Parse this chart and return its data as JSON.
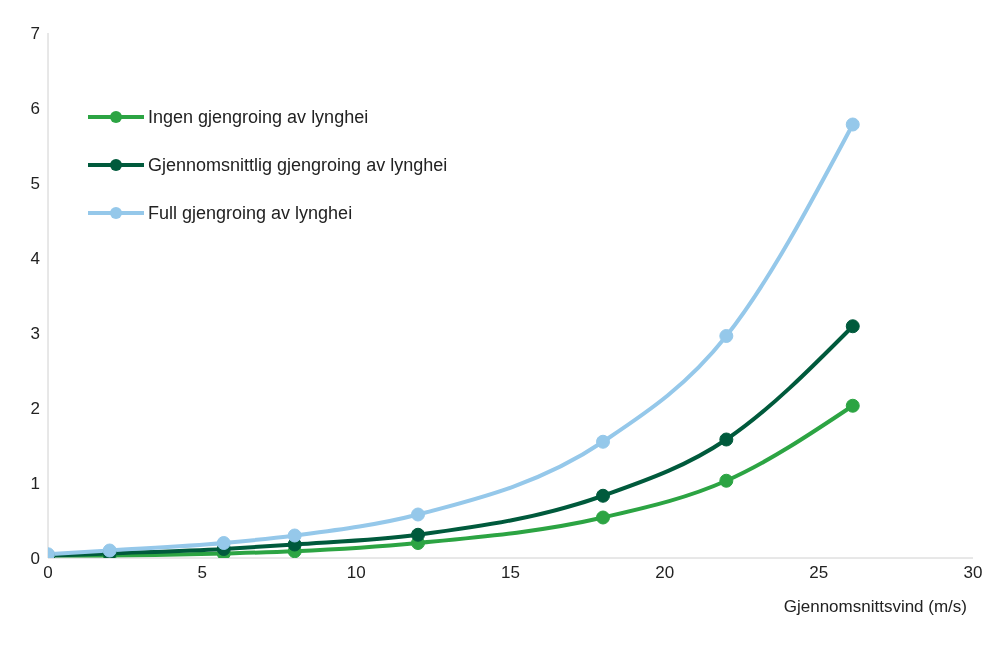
{
  "chart_data": {
    "type": "line",
    "xlabel": "Gjennomsnittsvind (m/s)",
    "x": [
      0,
      2,
      5.7,
      8,
      12,
      18,
      22,
      26.1
    ],
    "series": [
      {
        "name": "Ingen gjengroing av lynghei",
        "color": "#2ca443",
        "values": [
          0.01,
          0.03,
          0.06,
          0.09,
          0.2,
          0.54,
          1.03,
          2.03
        ]
      },
      {
        "name": "Gjennomsnittlig gjengroing av lynghei",
        "color": "#005a3c",
        "values": [
          0.03,
          0.06,
          0.12,
          0.18,
          0.31,
          0.83,
          1.58,
          3.09
        ]
      },
      {
        "name": "Full gjengroing av lynghei",
        "color": "#95c8ea",
        "values": [
          0.05,
          0.1,
          0.2,
          0.3,
          0.58,
          1.55,
          2.96,
          5.78
        ]
      }
    ],
    "xlim": [
      0,
      30
    ],
    "xticks": [
      0,
      5,
      10,
      15,
      20,
      25,
      30
    ],
    "ylim": [
      0,
      7
    ],
    "yticks": [
      0,
      1,
      2,
      3,
      4,
      5,
      6,
      7
    ],
    "grid": false,
    "legend": "top left",
    "marker": "circle",
    "line_style": "solid"
  }
}
